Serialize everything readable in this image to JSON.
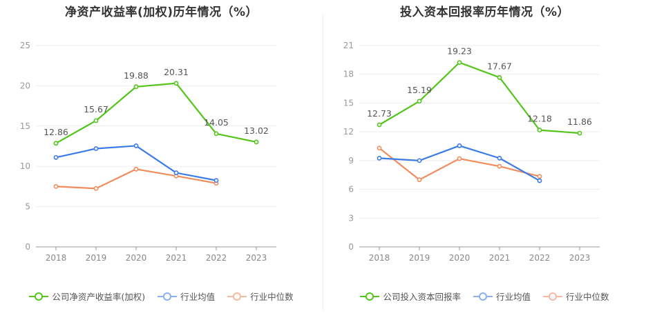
{
  "chart_data": [
    {
      "type": "line",
      "title": "净资产收益率(加权)历年情况（%）",
      "categories": [
        "2018",
        "2019",
        "2020",
        "2021",
        "2022",
        "2023"
      ],
      "ylim": [
        0,
        25
      ],
      "yticks": [
        0,
        5,
        10,
        15,
        20,
        25
      ],
      "grid": true,
      "legend_position": "bottom",
      "series": [
        {
          "name": "公司净资产收益率(加权)",
          "color": "#52c41a",
          "values": [
            12.86,
            15.67,
            19.88,
            20.31,
            14.05,
            13.02
          ],
          "labels": [
            "12.86",
            "15.67",
            "19.88",
            "20.31",
            "14.05",
            "13.02"
          ]
        },
        {
          "name": "行业均值",
          "color": "#3b7be8",
          "values": [
            11.1,
            12.2,
            12.55,
            9.2,
            8.25,
            null
          ]
        },
        {
          "name": "行业中位数",
          "color": "#f28b5b",
          "values": [
            7.5,
            7.25,
            9.65,
            8.8,
            7.9,
            null
          ]
        }
      ]
    },
    {
      "type": "line",
      "title": "投入资本回报率历年情况（%）",
      "categories": [
        "2018",
        "2019",
        "2020",
        "2021",
        "2022",
        "2023"
      ],
      "ylim": [
        0,
        21
      ],
      "yticks": [
        0,
        3,
        6,
        9,
        12,
        15,
        18,
        21
      ],
      "grid": true,
      "legend_position": "bottom",
      "series": [
        {
          "name": "公司投入资本回报率",
          "color": "#52c41a",
          "values": [
            12.73,
            15.19,
            19.23,
            17.67,
            12.18,
            11.86
          ],
          "labels": [
            "12.73",
            "15.19",
            "19.23",
            "17.67",
            "12.18",
            "11.86"
          ]
        },
        {
          "name": "行业均值",
          "color": "#3b7be8",
          "values": [
            9.25,
            9.0,
            10.55,
            9.25,
            6.9,
            null
          ]
        },
        {
          "name": "行业中位数",
          "color": "#f28b5b",
          "values": [
            10.3,
            7.0,
            9.2,
            8.4,
            7.35,
            null
          ]
        }
      ]
    }
  ]
}
